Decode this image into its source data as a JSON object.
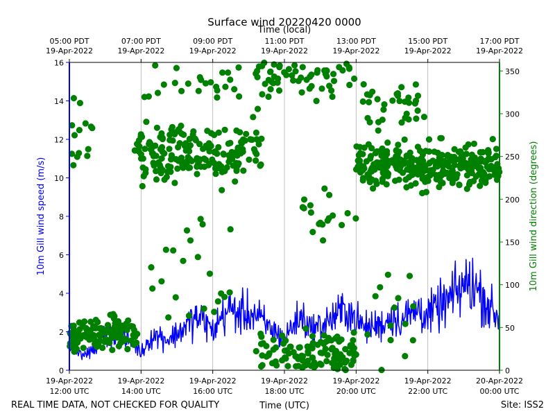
{
  "chart_data": {
    "type": "line+scatter",
    "title": "Surface wind 20220420 0000",
    "top_axis_label": "Time (local)",
    "top_ticks": [
      {
        "hour": 0,
        "line1": "05:00 PDT",
        "line2": "19-Apr-2022"
      },
      {
        "hour": 2,
        "line1": "07:00 PDT",
        "line2": "19-Apr-2022"
      },
      {
        "hour": 4,
        "line1": "09:00 PDT",
        "line2": "19-Apr-2022"
      },
      {
        "hour": 6,
        "line1": "11:00 PDT",
        "line2": "19-Apr-2022"
      },
      {
        "hour": 8,
        "line1": "13:00 PDT",
        "line2": "19-Apr-2022"
      },
      {
        "hour": 10,
        "line1": "15:00 PDT",
        "line2": "19-Apr-2022"
      },
      {
        "hour": 12,
        "line1": "17:00 PDT",
        "line2": "19-Apr-2022"
      }
    ],
    "bottom_ticks": [
      {
        "hour": 0,
        "line1": "19-Apr-2022",
        "line2": "12:00 UTC"
      },
      {
        "hour": 2,
        "line1": "19-Apr-2022",
        "line2": "14:00 UTC"
      },
      {
        "hour": 4,
        "line1": "19-Apr-2022",
        "line2": "16:00 UTC"
      },
      {
        "hour": 6,
        "line1": "19-Apr-2022",
        "line2": "18:00 UTC"
      },
      {
        "hour": 8,
        "line1": "19-Apr-2022",
        "line2": "20:00 UTC"
      },
      {
        "hour": 10,
        "line1": "19-Apr-2022",
        "line2": "22:00 UTC"
      },
      {
        "hour": 12,
        "line1": "20-Apr-2022",
        "line2": "00:00 UTC"
      }
    ],
    "xlabel": "Time (UTC)",
    "xlim_hours": [
      0,
      12
    ],
    "left_axis": {
      "label": "10m Gill wind speed (m/s)",
      "ylim": [
        0,
        16
      ],
      "ticks": [
        0,
        2,
        4,
        6,
        8,
        10,
        12,
        14,
        16
      ],
      "color": "#0000ff"
    },
    "right_axis": {
      "label": "10m Gill wind direction (degrees)",
      "ylim": [
        0,
        360
      ],
      "ticks": [
        0,
        50,
        100,
        150,
        200,
        250,
        300,
        350
      ],
      "color": "#008000"
    },
    "grid": "vertical",
    "speed_series": {
      "name": "10m Gill wind speed",
      "color": "#0000ff",
      "hours": [
        0,
        0.25,
        0.5,
        0.75,
        1,
        1.25,
        1.5,
        1.75,
        2,
        2.25,
        2.5,
        2.75,
        3,
        3.25,
        3.5,
        3.75,
        4,
        4.25,
        4.5,
        4.75,
        5,
        5.25,
        5.5,
        5.75,
        6,
        6.25,
        6.5,
        6.75,
        7,
        7.25,
        7.5,
        7.75,
        8,
        8.25,
        8.5,
        8.75,
        9,
        9.25,
        9.5,
        9.75,
        10,
        10.25,
        10.5,
        10.75,
        11,
        11.25,
        11.5,
        11.75,
        12
      ],
      "values": [
        1.3,
        0.9,
        0.8,
        1.2,
        1.8,
        1.9,
        1.7,
        1.5,
        0.9,
        1.7,
        1.8,
        1.6,
        1.9,
        2.3,
        2.7,
        2.6,
        2.0,
        2.8,
        3.2,
        2.9,
        3.0,
        2.8,
        2.3,
        2.0,
        1.6,
        2.4,
        2.8,
        2.1,
        2.3,
        2.6,
        2.9,
        3.2,
        2.6,
        2.2,
        2.3,
        2.4,
        2.8,
        2.6,
        2.9,
        3.2,
        2.8,
        3.2,
        3.5,
        3.9,
        4.4,
        4.5,
        3.9,
        3.2,
        2.6
      ]
    },
    "direction_series": {
      "name": "10m Gill wind direction",
      "color": "#008000",
      "clusters": [
        {
          "h0": 0.0,
          "h1": 1.9,
          "d_mean": 42,
          "d_spread": 18,
          "n": 120
        },
        {
          "h0": 0.05,
          "h1": 0.7,
          "d_mean": 300,
          "d_spread": 55,
          "n": 14
        },
        {
          "h0": 1.8,
          "h1": 5.4,
          "d_mean": 255,
          "d_spread": 28,
          "n": 200
        },
        {
          "h0": 2.0,
          "h1": 5.2,
          "d_mean": 330,
          "d_spread": 22,
          "n": 24
        },
        {
          "h0": 2.0,
          "h1": 5.0,
          "d_mean": 110,
          "d_spread": 80,
          "n": 22
        },
        {
          "h0": 5.2,
          "h1": 8.0,
          "d_mean": 20,
          "d_spread": 20,
          "n": 120
        },
        {
          "h0": 5.2,
          "h1": 8.0,
          "d_mean": 340,
          "d_spread": 22,
          "n": 60
        },
        {
          "h0": 6.5,
          "h1": 8.0,
          "d_mean": 180,
          "d_spread": 35,
          "n": 18
        },
        {
          "h0": 8.0,
          "h1": 12.0,
          "d_mean": 240,
          "d_spread": 22,
          "n": 310
        },
        {
          "h0": 8.0,
          "h1": 10.0,
          "d_mean": 310,
          "d_spread": 28,
          "n": 34
        },
        {
          "h0": 8.2,
          "h1": 9.8,
          "d_mean": 60,
          "d_spread": 60,
          "n": 14
        }
      ]
    }
  },
  "footer": {
    "left_note": "REAL TIME DATA, NOT CHECKED FOR QUALITY",
    "site": "Site: ISS2"
  }
}
